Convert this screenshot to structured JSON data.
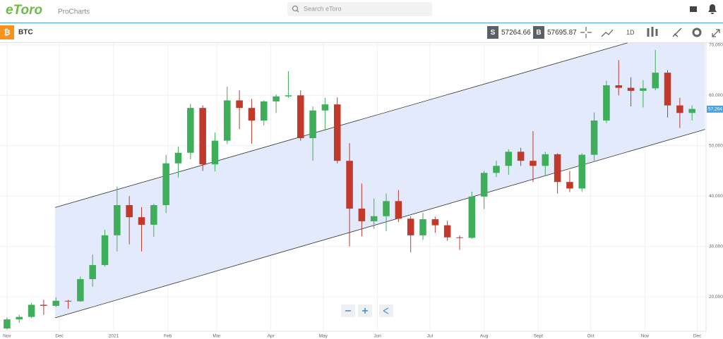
{
  "header": {
    "logo": "eToro",
    "product": "ProCharts",
    "search_placeholder": "Search eToro"
  },
  "toolbar": {
    "symbol": "BTC",
    "sell_tag": "S",
    "sell_price": "57264.66",
    "buy_tag": "B",
    "buy_price": "57695.87",
    "interval": "1D"
  },
  "chart_data": {
    "type": "candlestick",
    "up_color": "#3fae5a",
    "down_color": "#c0392b",
    "grid": true,
    "xlim": [
      -4,
      400
    ],
    "xticks": [
      {
        "value": 0,
        "label": "Nov"
      },
      {
        "value": 30,
        "label": "Dec"
      },
      {
        "value": 61,
        "label": "2021"
      },
      {
        "value": 92,
        "label": "Feb"
      },
      {
        "value": 120,
        "label": "Mar"
      },
      {
        "value": 151,
        "label": "Apr"
      },
      {
        "value": 181,
        "label": "May"
      },
      {
        "value": 212,
        "label": "Jun"
      },
      {
        "value": 242,
        "label": "Jul"
      },
      {
        "value": 273,
        "label": "Aug"
      },
      {
        "value": 304,
        "label": "Sept"
      },
      {
        "value": 334,
        "label": "Oct"
      },
      {
        "value": 365,
        "label": "Nov"
      },
      {
        "value": 395,
        "label": "Dec"
      }
    ],
    "ylim": [
      13150,
      70400
    ],
    "yticks": [
      {
        "value": 20000,
        "label": "20,000"
      },
      {
        "value": 30000,
        "label": "30,000"
      },
      {
        "value": 40000,
        "label": "40,000"
      },
      {
        "value": 50000,
        "label": "50,000"
      },
      {
        "value": 60000,
        "label": "60,000"
      },
      {
        "value": 70000,
        "label": "70,000"
      }
    ],
    "last_price": 57264,
    "last_price_label": "57,264",
    "channel": {
      "x": [
        27.5,
        399.4
      ],
      "upper": [
        37737,
        70419
      ],
      "upper_end_x": 355,
      "lower": [
        15810,
        53240
      ]
    },
    "candles": {
      "x": [
        0,
        7,
        14,
        21,
        28,
        35,
        42,
        49,
        56,
        63,
        70,
        77,
        84,
        91,
        98,
        105,
        112,
        119,
        126,
        133,
        140,
        147,
        154,
        161,
        168,
        175,
        182,
        189,
        196,
        203,
        210,
        217,
        224,
        231,
        238,
        245,
        252,
        259,
        266,
        273,
        280,
        287,
        294,
        301,
        308,
        315,
        322,
        329,
        336,
        343,
        350,
        357,
        364,
        371,
        378,
        385,
        392
      ],
      "open": [
        13700,
        15500,
        16000,
        18400,
        18200,
        19200,
        19100,
        23500,
        26300,
        32200,
        38200,
        35800,
        34300,
        38200,
        46500,
        48600,
        57500,
        46300,
        51000,
        59000,
        57500,
        55000,
        58800,
        59800,
        60000,
        51500,
        57000,
        58200,
        47000,
        37500,
        35000,
        36000,
        39000,
        35500,
        32200,
        35400,
        34200,
        31800,
        31700,
        39900,
        44600,
        46000,
        48800,
        47000,
        46000,
        48300,
        42800,
        41500,
        48200,
        55000,
        62000,
        61500,
        60900,
        61400,
        64500,
        58000,
        56500
      ],
      "high": [
        15900,
        16400,
        18800,
        19400,
        19900,
        19400,
        24000,
        28400,
        33300,
        41900,
        40000,
        37800,
        38500,
        48200,
        49800,
        58300,
        58000,
        52600,
        61700,
        61000,
        59300,
        59000,
        60200,
        64800,
        61000,
        57800,
        59500,
        59600,
        50500,
        42500,
        39500,
        40500,
        41200,
        36000,
        36700,
        35900,
        35100,
        32200,
        40900,
        45000,
        47000,
        49300,
        49600,
        52900,
        48800,
        48500,
        45000,
        48500,
        56600,
        62900,
        67000,
        63600,
        63000,
        69000,
        65000,
        59500,
        58000
      ],
      "low": [
        13500,
        14800,
        15800,
        16400,
        18000,
        17600,
        19000,
        22000,
        26000,
        29000,
        30400,
        29000,
        31900,
        36600,
        43700,
        47300,
        45000,
        44900,
        50300,
        53300,
        50400,
        54000,
        56500,
        59500,
        51000,
        47000,
        53000,
        46500,
        30000,
        32000,
        33500,
        33000,
        34800,
        28800,
        31300,
        32700,
        31100,
        29300,
        31500,
        37400,
        43800,
        44200,
        46000,
        42800,
        44000,
        40500,
        40800,
        40800,
        47000,
        54500,
        60000,
        57800,
        57600,
        61000,
        55600,
        53500,
        55000
      ],
      "close": [
        15500,
        16000,
        18400,
        18200,
        19200,
        19100,
        23500,
        26300,
        32200,
        38200,
        35800,
        34300,
        38200,
        46500,
        48600,
        57500,
        46300,
        51000,
        59000,
        57500,
        55000,
        58800,
        59800,
        60000,
        51500,
        57000,
        58200,
        47000,
        37500,
        35000,
        36000,
        39000,
        35500,
        32200,
        35400,
        34200,
        31800,
        31700,
        39900,
        44600,
        46000,
        48800,
        47000,
        46000,
        48300,
        42800,
        41500,
        48200,
        55000,
        62000,
        61500,
        60900,
        61400,
        64500,
        58000,
        56500,
        57300
      ]
    }
  }
}
